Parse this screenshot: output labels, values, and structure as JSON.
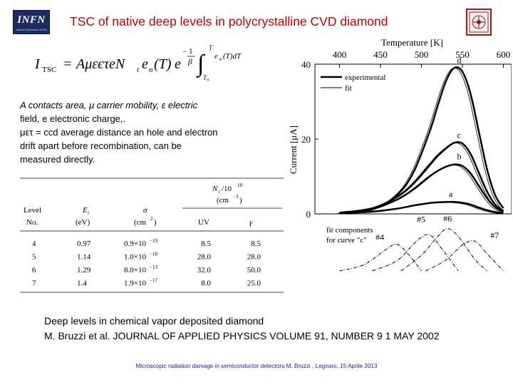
{
  "slide": {
    "title": "TSC of native  deep levels in polycrystalline CVD diamond",
    "logo_left": {
      "text": "INFN",
      "subtext": "Istituto Nazionale di Fisica Nucleare",
      "color": "#1d2b63"
    },
    "logo_right": {
      "icon": "university-seal-icon",
      "color": "#8a1f1f"
    },
    "title_color": "#c00000"
  },
  "formula": {
    "lhs": "I",
    "lhs_sub": "TSC",
    "eq": "=",
    "rhs_main": "AμεєτeN",
    "nt_sub": "t",
    "en": "e",
    "en_sub": "n",
    "en_arg": "(T)",
    "exp_base": "e",
    "frac_num": "1",
    "frac_den": "β",
    "integral": "∫",
    "int_low": "T₀",
    "int_high": "T",
    "integrand": "e",
    "integrand_sub": "n",
    "integrand_rest": "(T)dT"
  },
  "description": {
    "line1": "A contacts area, μ  carrier mobility, ε  electric",
    "line2": "field, e electronic charge,.",
    "line3": "μετ = ccd average distance an hole and electron",
    "line4": "drift apart before recombination, can be",
    "line5": "measured directly."
  },
  "table": {
    "group_header": "N",
    "group_header_sub": "t",
    "group_header_rest": "/10",
    "group_header_exp": "18",
    "group_header_unit": "(cm",
    "group_header_unit_exp": "−3",
    "group_header_unit_close": ")",
    "headers": {
      "level_line1": "Level",
      "level_line2": "No.",
      "e_line1": "E",
      "e_sub": "i",
      "e_line2": "(eV)",
      "sigma_line1": "σ",
      "sigma_line2": "(cm",
      "sigma_line2_exp": "2",
      "sigma_line2_close": ")",
      "uv": "UV",
      "gamma": "γ"
    },
    "rows": [
      {
        "level": "4",
        "e": "0.97",
        "sigma_m": "0.9×10",
        "sigma_exp": "−19",
        "uv": "8.5",
        "gamma": "8.5"
      },
      {
        "level": "5",
        "e": "1.14",
        "sigma_m": "1.0×10",
        "sigma_exp": "−18",
        "uv": "28.0",
        "gamma": "28.0"
      },
      {
        "level": "6",
        "e": "1.29",
        "sigma_m": "8.0×10",
        "sigma_exp": "−13",
        "uv": "32.0",
        "gamma": "50.0"
      },
      {
        "level": "7",
        "e": "1.4",
        "sigma_m": "1.9×10",
        "sigma_exp": "−17",
        "uv": "8.0",
        "gamma": "25.0"
      }
    ]
  },
  "chart_data": {
    "type": "line",
    "title": "",
    "top_xlabel": "Temperature [K]",
    "top_xticks": [
      "400",
      "450",
      "500",
      "550",
      "600"
    ],
    "xlim": [
      370,
      610
    ],
    "ylabel": "Current [μA]",
    "yticks": [
      "0",
      "20",
      "40"
    ],
    "ylim": [
      0,
      40
    ],
    "grid": false,
    "legend": {
      "placement": "top-left",
      "entries": [
        "experimental",
        "fit"
      ]
    },
    "series": [
      {
        "name": "d",
        "x": [
          400,
          440,
          470,
          490,
          510,
          520,
          530,
          540,
          550,
          560,
          570,
          580,
          590,
          600
        ],
        "values": [
          0.2,
          1.2,
          5.0,
          11.0,
          22.0,
          29.0,
          35.5,
          39.0,
          38.0,
          32.0,
          22.0,
          12.0,
          5.0,
          1.5
        ]
      },
      {
        "name": "c",
        "x": [
          400,
          440,
          470,
          490,
          510,
          520,
          530,
          540,
          550,
          560,
          570,
          580,
          590,
          600
        ],
        "values": [
          0.3,
          1.5,
          4.5,
          8.0,
          13.0,
          15.5,
          17.5,
          19.0,
          18.8,
          16.0,
          11.0,
          6.0,
          2.5,
          0.8
        ]
      },
      {
        "name": "b",
        "x": [
          400,
          440,
          470,
          490,
          510,
          520,
          530,
          540,
          550,
          560,
          570,
          580,
          590,
          600
        ],
        "values": [
          0.3,
          1.3,
          3.8,
          6.5,
          10.0,
          11.5,
          12.6,
          13.2,
          12.8,
          10.8,
          7.5,
          4.2,
          1.8,
          0.6
        ]
      },
      {
        "name": "a",
        "x": [
          400,
          440,
          470,
          490,
          510,
          520,
          530,
          540,
          550,
          560,
          570,
          580,
          590,
          600
        ],
        "values": [
          0.2,
          0.6,
          1.4,
          2.2,
          2.9,
          3.1,
          3.2,
          3.2,
          3.0,
          2.5,
          1.7,
          1.0,
          0.5,
          0.2
        ]
      }
    ],
    "curve_labels": [
      "d",
      "c",
      "b",
      "a"
    ],
    "fit_components_label_line1": "fit  components",
    "fit_components_label_line2": "for curve \"c\"",
    "fit_components": [
      {
        "name": "#4",
        "x": [
          400,
          430,
          455,
          470,
          485,
          500
        ],
        "values": [
          0.0,
          0.8,
          2.6,
          3.4,
          2.0,
          0.0
        ]
      },
      {
        "name": "#5",
        "x": [
          440,
          470,
          495,
          510,
          525,
          545
        ],
        "values": [
          0.0,
          1.3,
          3.9,
          4.6,
          2.8,
          0.0
        ]
      },
      {
        "name": "#6",
        "x": [
          475,
          500,
          520,
          532,
          545,
          565,
          580
        ],
        "values": [
          0.0,
          2.0,
          4.4,
          5.4,
          4.4,
          1.5,
          0.0
        ]
      },
      {
        "name": "#7",
        "x": [
          505,
          530,
          550,
          565,
          580,
          600
        ],
        "values": [
          0.0,
          1.4,
          3.3,
          3.8,
          2.2,
          0.0
        ]
      }
    ]
  },
  "citation": {
    "line1": "Deep levels in chemical vapor deposited diamond",
    "line2": "M. Bruzzi et al. JOURNAL OF APPLIED PHYSICS VOLUME 91, NUMBER 9 1 MAY 2002"
  },
  "footer": {
    "text": "Microscopic radiation damage in semiconductor detectors  M. Bruzzi , Legnaro, 15 Aprile 2013",
    "color": "#1a1aa0"
  }
}
